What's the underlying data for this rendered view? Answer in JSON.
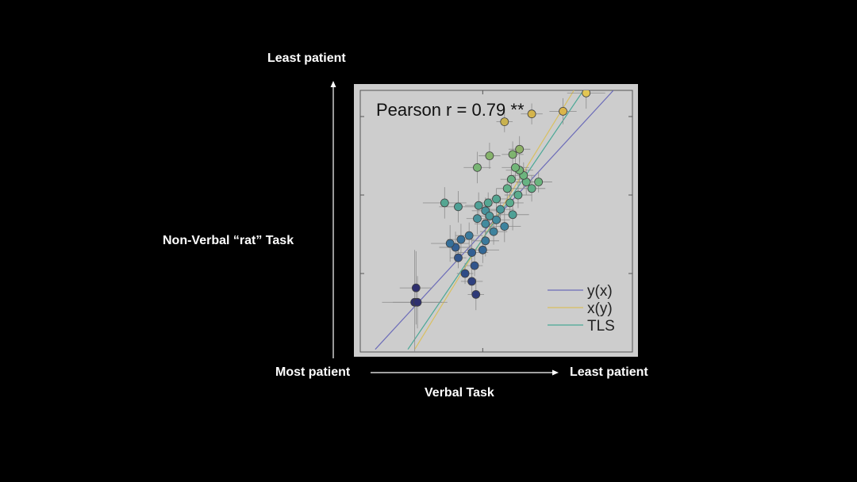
{
  "slide": {
    "y_axis_top": "Least patient",
    "y_axis_label": "Non-Verbal “rat” Task",
    "x_axis_left": "Most patient",
    "x_axis_right": "Least patient",
    "x_axis_label": "Verbal Task"
  },
  "chart_data": {
    "type": "scatter",
    "annotation": "Pearson r =  0.79 **",
    "xlim": [
      0,
      10
    ],
    "ylim": [
      0,
      10
    ],
    "grid": false,
    "legend_position": "bottom-right",
    "legend": [
      {
        "name": "y(x)",
        "color": "#6b6bb8"
      },
      {
        "name": "x(y)",
        "color": "#d9c060"
      },
      {
        "name": "TLS",
        "color": "#4aa896"
      }
    ],
    "lines": [
      {
        "name": "y(x)",
        "color": "#6b6bb8",
        "points": [
          [
            0.55,
            0.1
          ],
          [
            9.3,
            10
          ]
        ]
      },
      {
        "name": "x(y)",
        "color": "#d9c060",
        "points": [
          [
            2.0,
            0.1
          ],
          [
            7.85,
            10
          ]
        ]
      },
      {
        "name": "TLS",
        "color": "#4aa896",
        "points": [
          [
            1.75,
            0.1
          ],
          [
            8.2,
            10
          ]
        ]
      }
    ],
    "colors": {
      "background": "#000000",
      "plot_bg": "#cdcdcd",
      "error_bar": "#8a8a8a",
      "point_edge": "#404040"
    },
    "points": [
      {
        "x": 2.0,
        "y": 1.9,
        "xerr": 1.2,
        "yerr": 2.0,
        "color": "#2e2f6e"
      },
      {
        "x": 2.1,
        "y": 1.9,
        "xerr": 0.9,
        "yerr": 1.0,
        "color": "#2e2f6e"
      },
      {
        "x": 2.05,
        "y": 2.45,
        "xerr": 0.6,
        "yerr": 1.4,
        "color": "#2e2f6e"
      },
      {
        "x": 4.25,
        "y": 2.2,
        "xerr": 0.3,
        "yerr": 0.6,
        "color": "#2e3a78"
      },
      {
        "x": 4.1,
        "y": 2.7,
        "xerr": 0.4,
        "yerr": 0.5,
        "color": "#2f417f"
      },
      {
        "x": 3.85,
        "y": 3.0,
        "xerr": 0.3,
        "yerr": 0.4,
        "color": "#2f4d87"
      },
      {
        "x": 4.2,
        "y": 3.3,
        "xerr": 0.3,
        "yerr": 0.4,
        "color": "#31558c"
      },
      {
        "x": 3.6,
        "y": 3.6,
        "xerr": 0.3,
        "yerr": 0.4,
        "color": "#31558c"
      },
      {
        "x": 4.1,
        "y": 3.8,
        "xerr": 0.6,
        "yerr": 0.5,
        "color": "#335f92"
      },
      {
        "x": 3.5,
        "y": 4.0,
        "xerr": 0.6,
        "yerr": 0.6,
        "color": "#335f92"
      },
      {
        "x": 4.5,
        "y": 3.9,
        "xerr": 0.6,
        "yerr": 0.5,
        "color": "#336896"
      },
      {
        "x": 3.7,
        "y": 4.3,
        "xerr": 0.5,
        "yerr": 0.6,
        "color": "#36709a"
      },
      {
        "x": 3.3,
        "y": 4.15,
        "xerr": 0.7,
        "yerr": 0.7,
        "color": "#36709a"
      },
      {
        "x": 4.0,
        "y": 4.45,
        "xerr": 0.5,
        "yerr": 0.5,
        "color": "#3a7a9c"
      },
      {
        "x": 4.6,
        "y": 4.25,
        "xerr": 0.5,
        "yerr": 0.6,
        "color": "#3a7a9c"
      },
      {
        "x": 4.9,
        "y": 4.6,
        "xerr": 0.5,
        "yerr": 0.5,
        "color": "#3e839e"
      },
      {
        "x": 5.3,
        "y": 4.8,
        "xerr": 0.6,
        "yerr": 0.6,
        "color": "#3e839e"
      },
      {
        "x": 4.6,
        "y": 4.9,
        "xerr": 0.4,
        "yerr": 0.5,
        "color": "#428b9e"
      },
      {
        "x": 5.0,
        "y": 5.05,
        "xerr": 0.5,
        "yerr": 0.5,
        "color": "#428b9e"
      },
      {
        "x": 4.3,
        "y": 5.1,
        "xerr": 0.4,
        "yerr": 0.6,
        "color": "#46929c"
      },
      {
        "x": 4.6,
        "y": 5.4,
        "xerr": 0.5,
        "yerr": 0.5,
        "color": "#46929c"
      },
      {
        "x": 4.75,
        "y": 5.2,
        "xerr": 0.4,
        "yerr": 0.5,
        "color": "#4a999a"
      },
      {
        "x": 5.15,
        "y": 5.45,
        "xerr": 0.5,
        "yerr": 0.5,
        "color": "#4a999a"
      },
      {
        "x": 5.6,
        "y": 5.25,
        "xerr": 0.6,
        "yerr": 0.6,
        "color": "#4fa096"
      },
      {
        "x": 4.35,
        "y": 5.6,
        "xerr": 0.5,
        "yerr": 0.5,
        "color": "#4fa096"
      },
      {
        "x": 3.6,
        "y": 5.55,
        "xerr": 0.7,
        "yerr": 0.6,
        "color": "#4fa096"
      },
      {
        "x": 4.7,
        "y": 5.7,
        "xerr": 0.4,
        "yerr": 0.4,
        "color": "#55a692"
      },
      {
        "x": 5.0,
        "y": 5.85,
        "xerr": 0.4,
        "yerr": 0.4,
        "color": "#55a692"
      },
      {
        "x": 3.1,
        "y": 5.7,
        "xerr": 0.8,
        "yerr": 0.6,
        "color": "#55a692"
      },
      {
        "x": 5.5,
        "y": 5.7,
        "xerr": 0.5,
        "yerr": 0.5,
        "color": "#5aac8d"
      },
      {
        "x": 5.8,
        "y": 6.0,
        "xerr": 0.5,
        "yerr": 0.5,
        "color": "#5aac8d"
      },
      {
        "x": 5.4,
        "y": 6.25,
        "xerr": 0.4,
        "yerr": 0.4,
        "color": "#60b088"
      },
      {
        "x": 6.3,
        "y": 6.25,
        "xerr": 0.5,
        "yerr": 0.5,
        "color": "#60b088"
      },
      {
        "x": 6.1,
        "y": 6.5,
        "xerr": 0.4,
        "yerr": 0.5,
        "color": "#66b383"
      },
      {
        "x": 5.55,
        "y": 6.6,
        "xerr": 0.4,
        "yerr": 0.5,
        "color": "#66b383"
      },
      {
        "x": 6.55,
        "y": 6.5,
        "xerr": 0.5,
        "yerr": 0.4,
        "color": "#6cb57e"
      },
      {
        "x": 6.0,
        "y": 6.75,
        "xerr": 0.4,
        "yerr": 0.5,
        "color": "#6cb57e"
      },
      {
        "x": 5.85,
        "y": 6.95,
        "xerr": 0.5,
        "yerr": 0.5,
        "color": "#72b679"
      },
      {
        "x": 5.7,
        "y": 7.05,
        "xerr": 0.5,
        "yerr": 0.5,
        "color": "#72b679"
      },
      {
        "x": 4.3,
        "y": 7.05,
        "xerr": 0.5,
        "yerr": 0.6,
        "color": "#78b574"
      },
      {
        "x": 5.6,
        "y": 7.55,
        "xerr": 0.4,
        "yerr": 0.5,
        "color": "#7fb46f"
      },
      {
        "x": 4.75,
        "y": 7.5,
        "xerr": 0.4,
        "yerr": 0.5,
        "color": "#86b36b"
      },
      {
        "x": 5.85,
        "y": 7.75,
        "xerr": 0.4,
        "yerr": 0.5,
        "color": "#8eb267"
      },
      {
        "x": 5.3,
        "y": 8.8,
        "xerr": 0.3,
        "yerr": 0.4,
        "color": "#c9b24f"
      },
      {
        "x": 6.3,
        "y": 9.1,
        "xerr": 0.4,
        "yerr": 0.4,
        "color": "#d4b44c"
      },
      {
        "x": 7.45,
        "y": 9.2,
        "xerr": 0.5,
        "yerr": 0.5,
        "color": "#dab54a"
      },
      {
        "x": 8.3,
        "y": 9.9,
        "xerr": 0.7,
        "yerr": 0.6,
        "color": "#e2c653"
      }
    ]
  }
}
